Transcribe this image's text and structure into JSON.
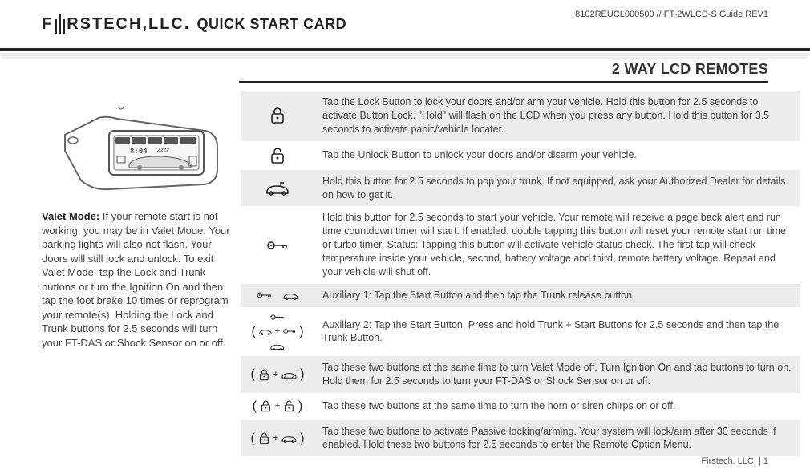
{
  "header": {
    "brand_left": "F",
    "brand_right": "RSTECH,LLC.",
    "quick_title": "QUICK START CARD",
    "doc_id": "8102REUCL000500 // FT-2WLCD-S Guide REV1"
  },
  "section_title": "2 WAY LCD REMOTES",
  "valet": {
    "label": "Valet Mode:",
    "text": " If your remote start is not working, you may be in Valet Mode. Your parking lights will also not flash. Your doors will still lock and unlock. To exit Valet Mode, tap the Lock and Trunk buttons or turn the Ignition On and then tap the foot brake 10 times or reprogram your remote(s). Holding the Lock and Trunk buttons for 2.5 seconds will turn your FT-DAS or Shock Sensor on or off."
  },
  "rows": [
    {
      "shade": true,
      "icon": "lock",
      "text": "Tap the Lock Button to lock your doors and/or arm your vehicle. Hold this button for 2.5 seconds to activate Button Lock. \"Hold\" will flash on the LCD when you press any button. Hold this button for 3.5 seconds to activate panic/vehicle locater."
    },
    {
      "shade": false,
      "icon": "unlock",
      "text": "Tap the Unlock Button to unlock your doors and/or disarm your vehicle."
    },
    {
      "shade": true,
      "icon": "trunk",
      "text": "Hold this button for 2.5 seconds to pop your trunk. If not equipped, ask your Authorized Dealer for details on how to get it."
    },
    {
      "shade": false,
      "icon": "key",
      "text": "Hold this button for 2.5 seconds to start your vehicle. Your remote will receive a page back alert and run time countdown timer will start. If enabled, double tapping this button will reset your remote start run time or turbo timer. Status: Tapping this button will activate vehicle status check. The first tap will check temperature inside your vehicle, second, battery voltage and third, remote battery voltage. Repeat and your vehicle will shut off."
    },
    {
      "shade": true,
      "icon": "aux1",
      "text": "Auxiliary 1: Tap the Start Button and then tap the Trunk release button."
    },
    {
      "shade": false,
      "icon": "aux2",
      "text": "Auxiliary 2: Tap the Start Button, Press and hold Trunk + Start Buttons for 2.5 seconds and then tap the Trunk Button."
    },
    {
      "shade": true,
      "icon": "lock_trunk",
      "text": "Tap these two buttons at the same time to turn Valet Mode off. Turn Ignition On and tap buttons to turn on. Hold them for 2.5 seconds to turn your FT-DAS or Shock Sensor on or off."
    },
    {
      "shade": false,
      "icon": "lock_unlock",
      "text": "Tap these two buttons at the same time to turn the horn or siren chirps on or off."
    },
    {
      "shade": true,
      "icon": "unlock_trunk",
      "text": "Tap these two buttons to activate Passive locking/arming. Your system will lock/arm after 30 seconds if enabled. Hold these two buttons for 2.5 seconds to enter the Remote Option Menu."
    }
  ],
  "footer": "Firstech, LLC. | 1",
  "colors": {
    "shade_bg": "#ececec",
    "text": "#444444",
    "heading": "#222222"
  }
}
